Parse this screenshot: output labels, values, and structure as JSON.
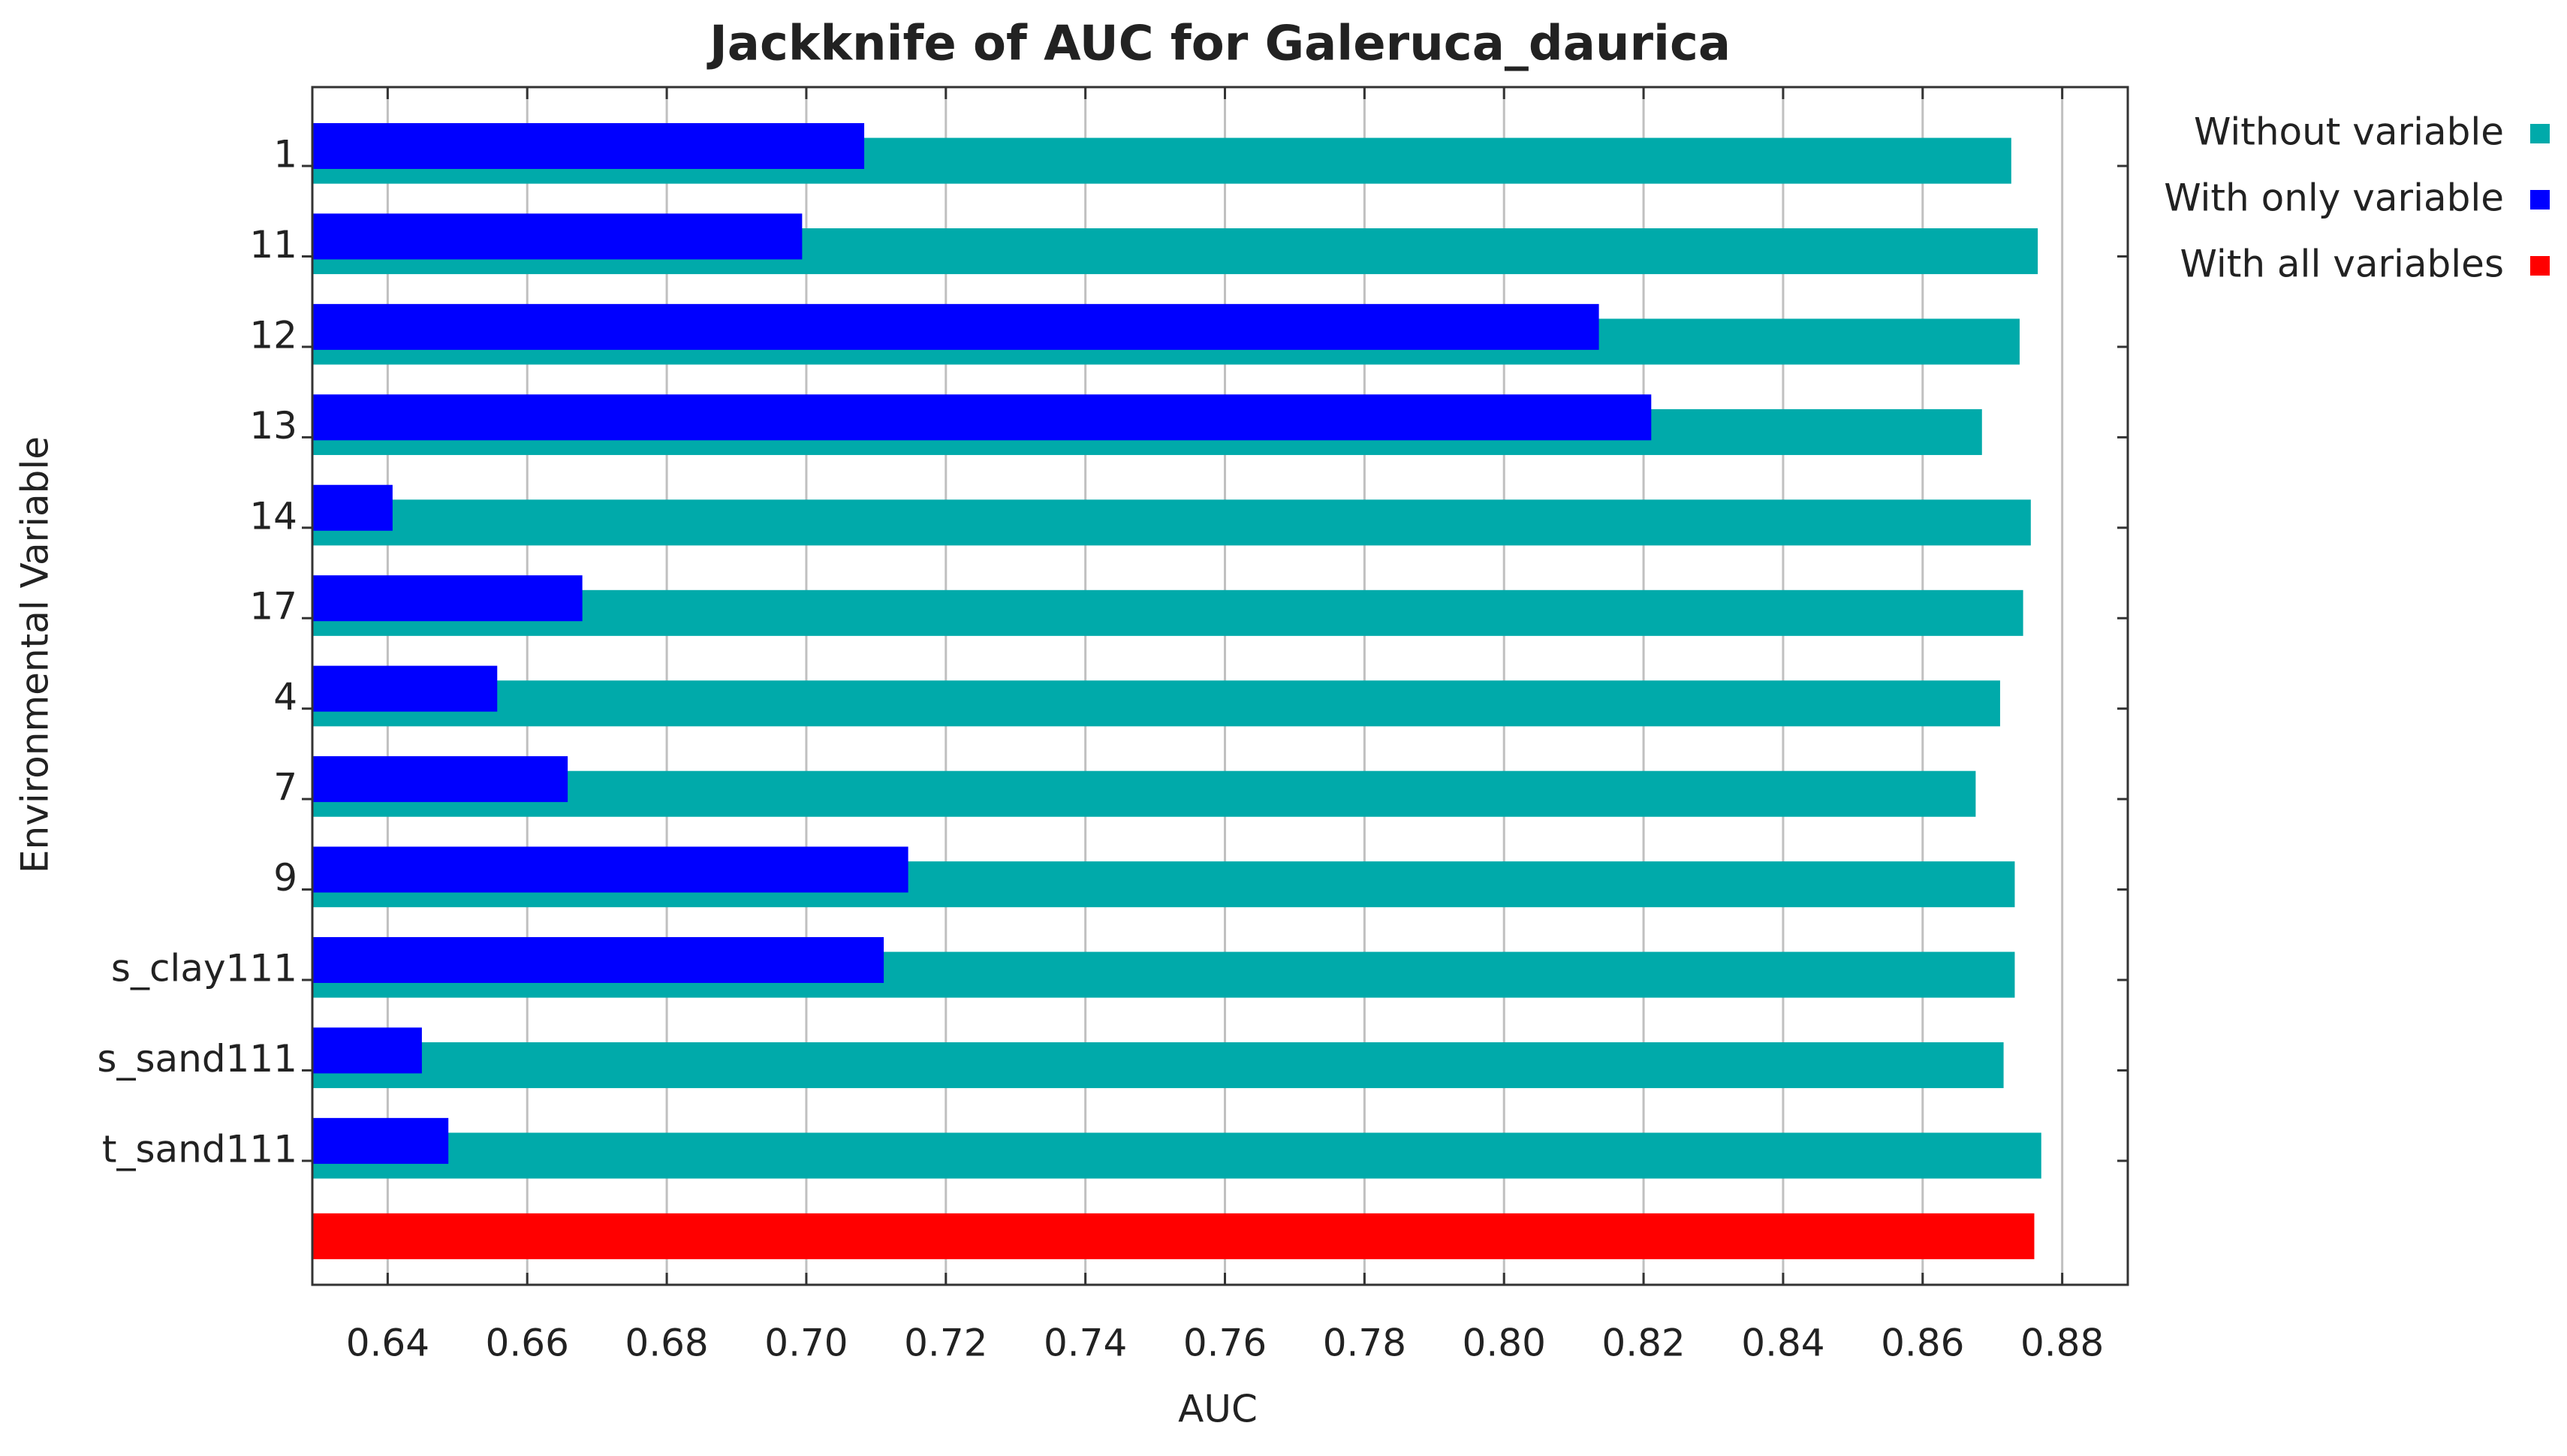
{
  "chart_data": {
    "type": "bar",
    "orientation": "horizontal",
    "title": "Jackknife of AUC for Galeruca_daurica",
    "x_label": "AUC",
    "y_label": "Environmental Variable",
    "categories": [
      "1",
      "11",
      "12",
      "13",
      "14",
      "17",
      "4",
      "7",
      "9",
      "s_clay111",
      "s_sand111",
      "t_sand111",
      null
    ],
    "series": [
      {
        "name": "Without variable",
        "color": "#00aaaa",
        "values": [
          0.8727,
          0.8765,
          0.8739,
          0.8685,
          0.8755,
          0.8744,
          0.8711,
          0.8676,
          0.8732,
          0.8732,
          0.8716,
          0.877,
          null
        ]
      },
      {
        "name": "With only variable",
        "color": "#0000ff",
        "values": [
          0.7083,
          0.6994,
          0.8136,
          0.8211,
          0.6407,
          0.6679,
          0.6557,
          0.6658,
          0.7146,
          0.7111,
          0.6449,
          0.6487,
          null
        ]
      },
      {
        "name": "With all variables",
        "color": "#ff0000",
        "values": [
          null,
          null,
          null,
          null,
          null,
          null,
          null,
          null,
          null,
          null,
          null,
          null,
          0.876
        ]
      }
    ],
    "xlim": [
      0.6292,
      0.8894
    ],
    "xticks": [
      {
        "value": 0.64,
        "label": "0.64"
      },
      {
        "value": 0.66,
        "label": "0.66"
      },
      {
        "value": 0.68,
        "label": "0.68"
      },
      {
        "value": 0.7,
        "label": "0.70"
      },
      {
        "value": 0.72,
        "label": "0.72"
      },
      {
        "value": 0.74,
        "label": "0.74"
      },
      {
        "value": 0.76,
        "label": "0.76"
      },
      {
        "value": 0.78,
        "label": "0.78"
      },
      {
        "value": 0.8,
        "label": "0.80"
      },
      {
        "value": 0.82,
        "label": "0.82"
      },
      {
        "value": 0.84,
        "label": "0.84"
      },
      {
        "value": 0.86,
        "label": "0.86"
      },
      {
        "value": 0.88,
        "label": "0.88"
      }
    ],
    "grid": true,
    "legend": "right"
  }
}
